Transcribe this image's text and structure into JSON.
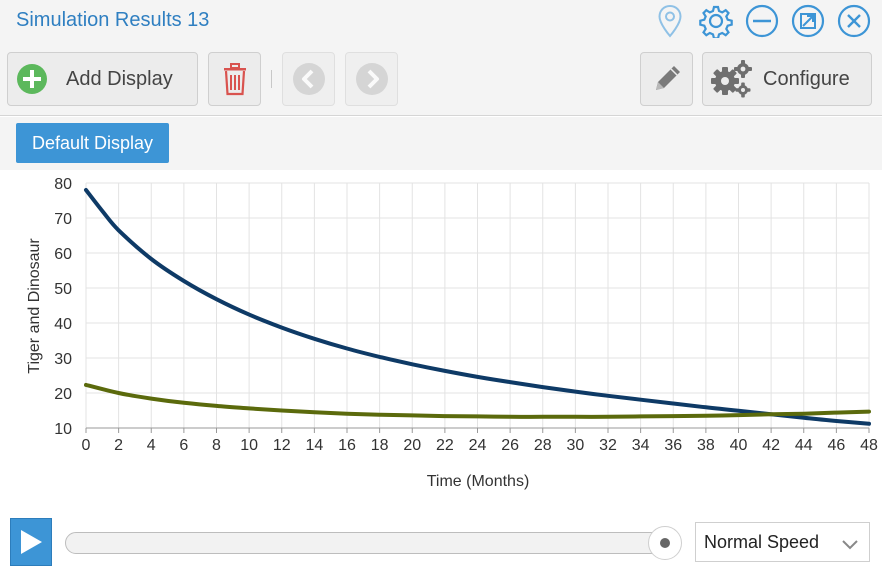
{
  "window": {
    "title": "Simulation Results 13",
    "icons": [
      "location-pin-icon",
      "gear-icon",
      "minimize-icon",
      "maximize-icon",
      "close-icon"
    ]
  },
  "toolbar": {
    "add_display_label": "Add Display",
    "configure_label": "Configure",
    "icons": [
      "plus-circle-icon",
      "trash-icon",
      "chevron-left-icon",
      "chevron-right-icon",
      "pencil-icon",
      "gears-icon"
    ]
  },
  "tabs": [
    {
      "label": "Default Display"
    }
  ],
  "colors": {
    "accent": "#3d95d6",
    "title": "#2f7fc1",
    "add": "#5cb85c",
    "trash": "#d9534f",
    "series_tiger": "#0e3a66",
    "series_dinosaur": "#5b6a0c"
  },
  "chart_data": {
    "type": "line",
    "title": "",
    "xlabel": "Time (Months)",
    "ylabel": "Tiger and Dinosaur",
    "xlim": [
      0,
      48
    ],
    "ylim": [
      10,
      80
    ],
    "xticks": [
      0,
      2,
      4,
      6,
      8,
      10,
      12,
      14,
      16,
      18,
      20,
      22,
      24,
      26,
      28,
      30,
      32,
      34,
      36,
      38,
      40,
      42,
      44,
      46,
      48
    ],
    "yticks": [
      10,
      20,
      30,
      40,
      50,
      60,
      70,
      80
    ],
    "grid": true,
    "legend": "none",
    "series": [
      {
        "x": [
          0,
          1,
          2,
          4,
          6,
          8,
          10,
          12,
          14,
          16,
          18,
          20,
          22,
          24,
          26,
          28,
          30,
          32,
          34,
          36,
          38,
          40,
          42,
          44,
          46,
          48
        ],
        "values": [
          78,
          72,
          66.5,
          58.3,
          52,
          46.8,
          42.4,
          38.7,
          35.5,
          32.7,
          30.3,
          28.2,
          26.3,
          24.6,
          23.1,
          21.7,
          20.4,
          19.2,
          18.1,
          17,
          15.9,
          14.9,
          13.9,
          12.9,
          12,
          11.2
        ]
      },
      {
        "x": [
          0,
          2,
          4,
          6,
          8,
          10,
          12,
          14,
          16,
          18,
          20,
          22,
          24,
          26,
          28,
          30,
          32,
          34,
          36,
          38,
          40,
          42,
          44,
          46,
          48
        ],
        "values": [
          22.3,
          20,
          18.4,
          17.2,
          16.3,
          15.6,
          15,
          14.5,
          14.1,
          13.8,
          13.6,
          13.4,
          13.3,
          13.2,
          13.2,
          13.2,
          13.2,
          13.3,
          13.4,
          13.5,
          13.7,
          13.9,
          14.1,
          14.4,
          14.7
        ]
      }
    ]
  },
  "playback": {
    "progress": 1.0,
    "speed": "Normal Speed"
  }
}
